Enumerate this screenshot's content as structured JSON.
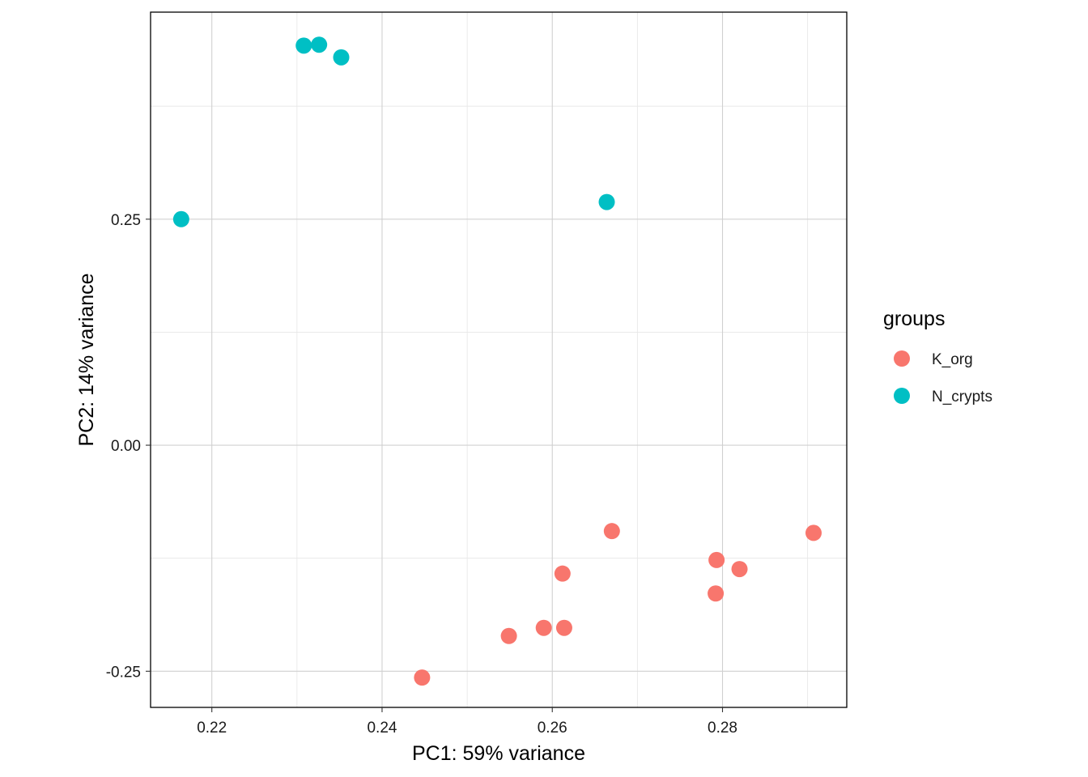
{
  "chart_data": {
    "type": "scatter",
    "title": "",
    "xlabel": "PC1: 59% variance",
    "ylabel": "PC2: 14% variance",
    "xlim": [
      0.2128,
      0.2946
    ],
    "ylim": [
      -0.29,
      0.479
    ],
    "x_ticks": [
      0.22,
      0.24,
      0.26,
      0.28
    ],
    "x_tick_labels": [
      "0.22",
      "0.24",
      "0.26",
      "0.28"
    ],
    "y_ticks": [
      -0.25,
      0.0,
      0.25
    ],
    "y_tick_labels": [
      "-0.25",
      "0.00",
      "0.25"
    ],
    "grid": true,
    "legend": {
      "title": "groups",
      "position": "right"
    },
    "series": [
      {
        "name": "K_org",
        "color": "#F8766D",
        "points": [
          [
            0.2447,
            -0.257
          ],
          [
            0.2549,
            -0.211
          ],
          [
            0.259,
            -0.202
          ],
          [
            0.2614,
            -0.202
          ],
          [
            0.2612,
            -0.142
          ],
          [
            0.267,
            -0.095
          ],
          [
            0.2793,
            -0.127
          ],
          [
            0.282,
            -0.137
          ],
          [
            0.2792,
            -0.164
          ],
          [
            0.2907,
            -0.097
          ]
        ]
      },
      {
        "name": "N_crypts",
        "color": "#00BFC4",
        "points": [
          [
            0.2164,
            0.25
          ],
          [
            0.2308,
            0.442
          ],
          [
            0.2326,
            0.443
          ],
          [
            0.2352,
            0.429
          ],
          [
            0.2664,
            0.269
          ]
        ]
      }
    ]
  }
}
